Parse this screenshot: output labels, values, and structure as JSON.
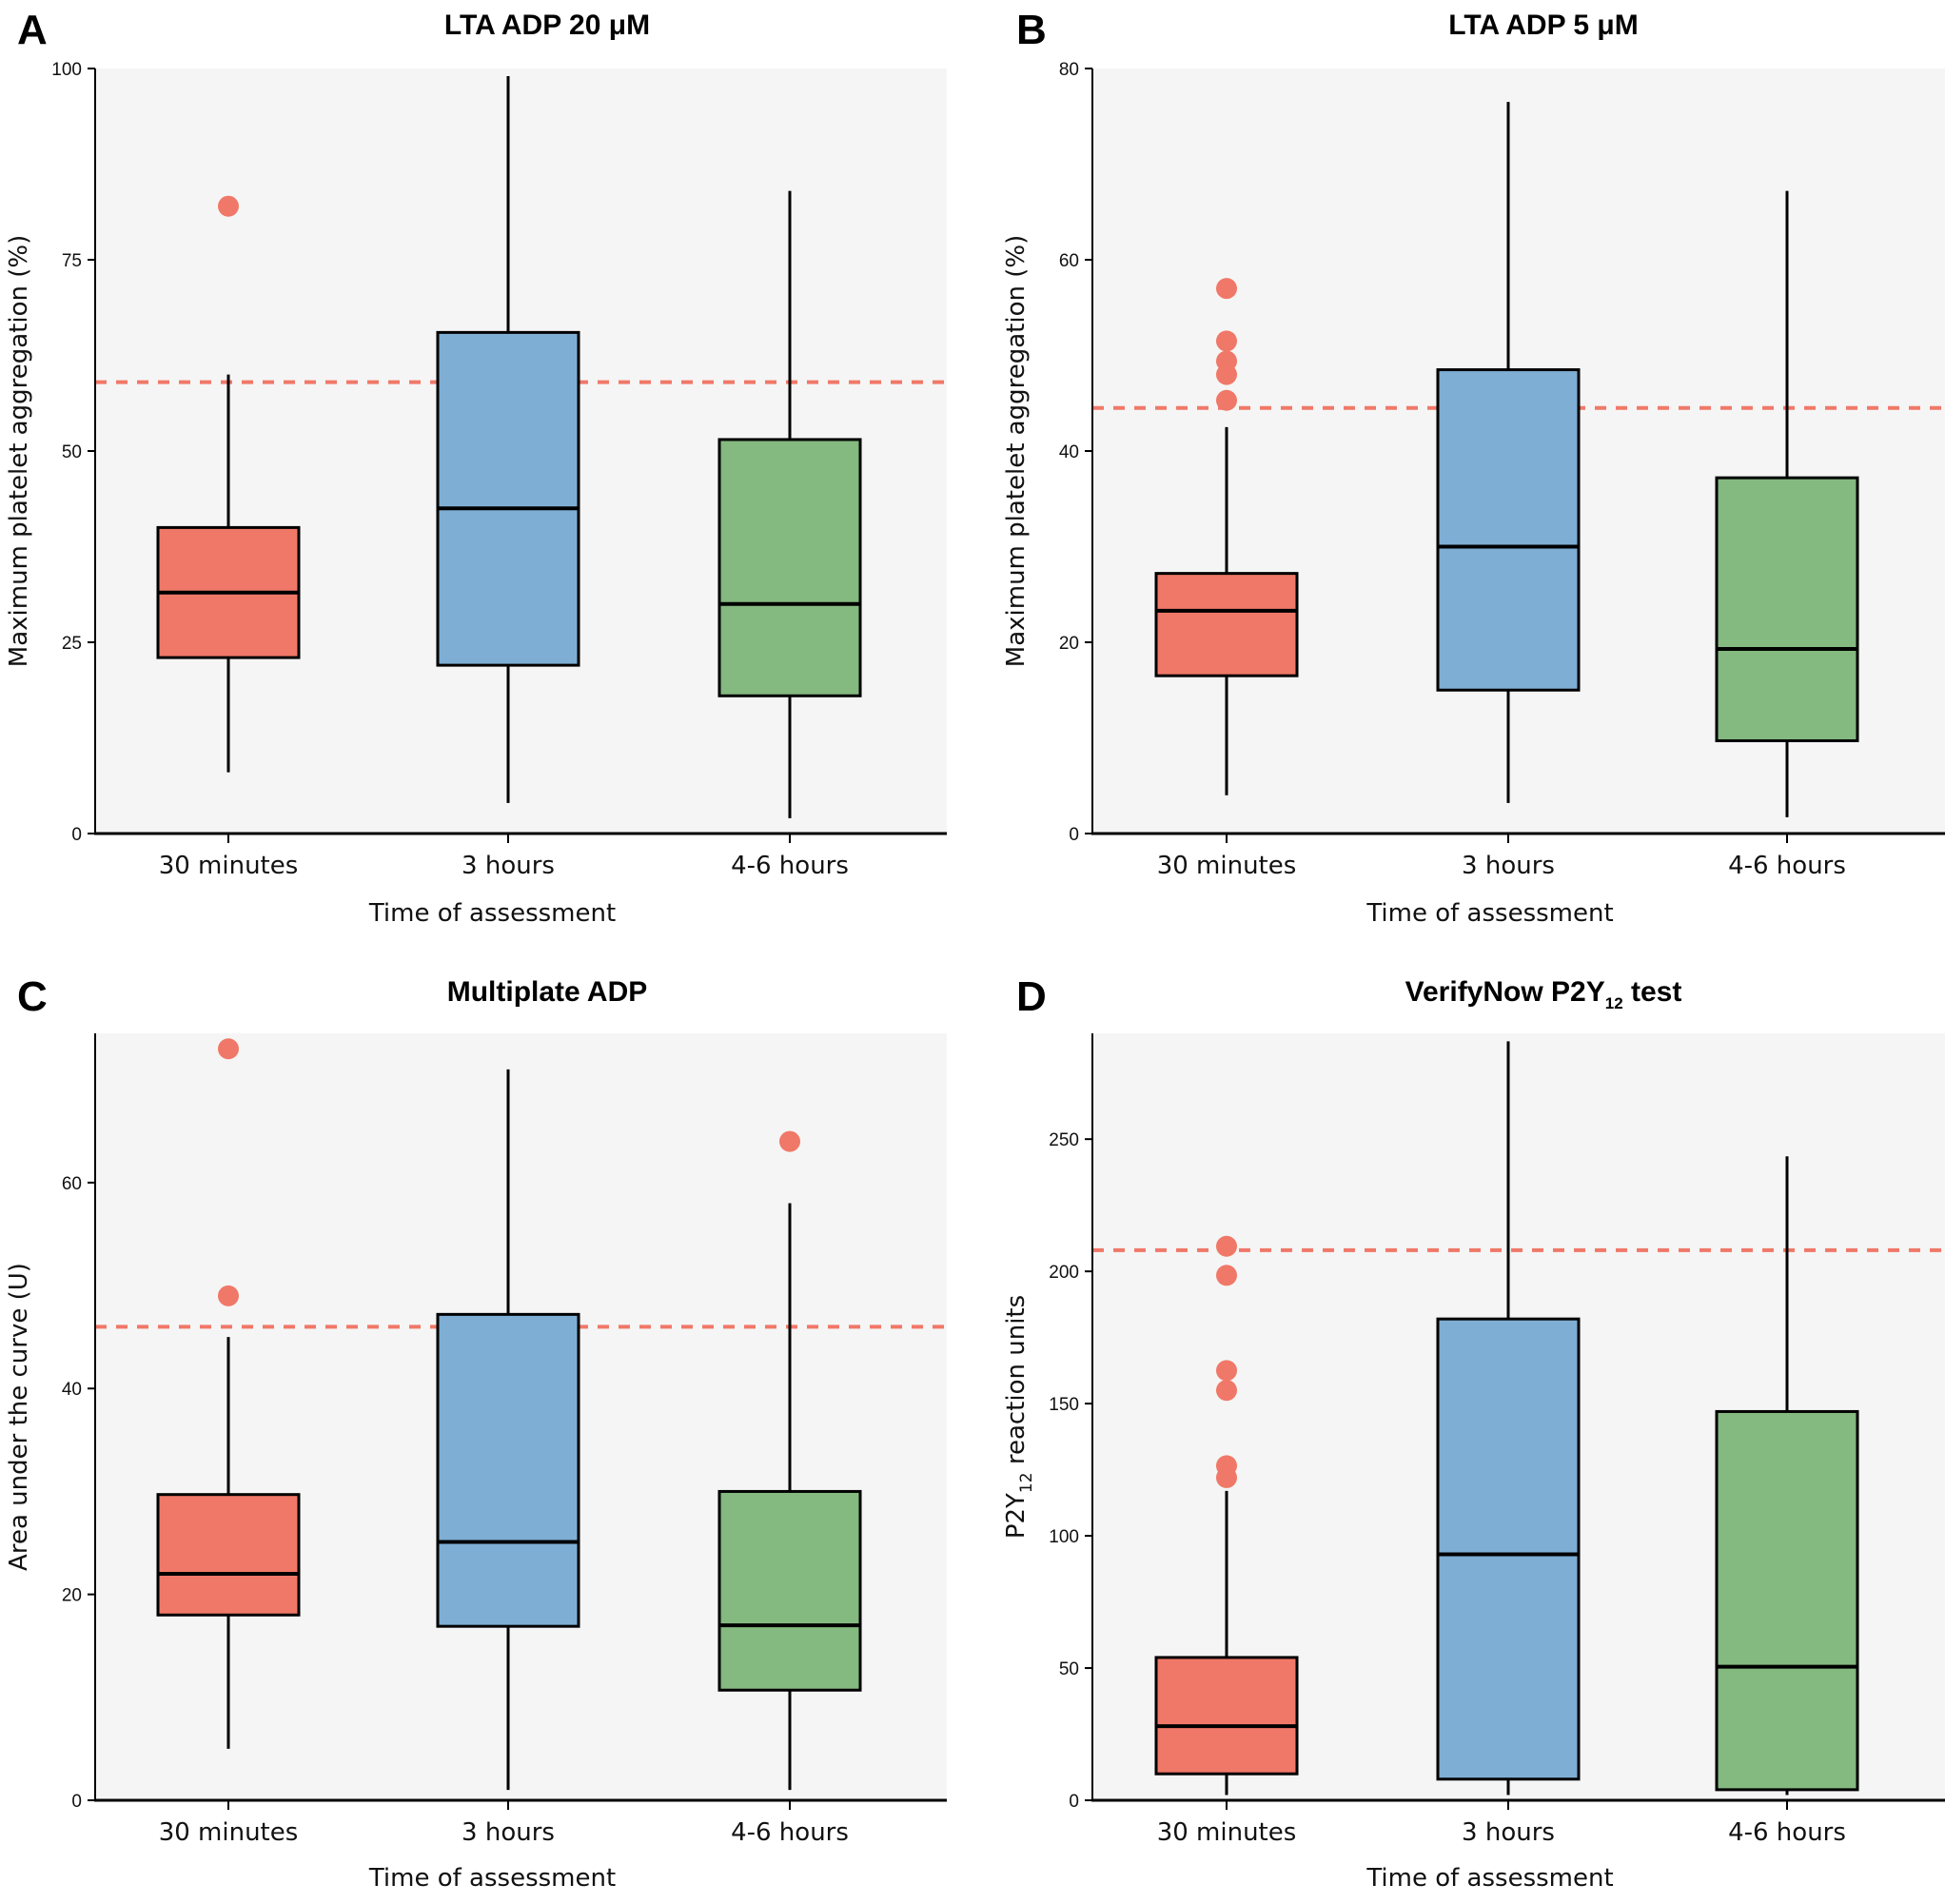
{
  "chart_data": [
    {
      "type": "box",
      "panel_letter": "A",
      "title": "LTA ADP 20 μM",
      "title_subscript": "",
      "title_suffix": "",
      "xlabel": "Time of assessment",
      "ylabel": "Maximum platelet aggregation (%)",
      "ylabel_subscript": "",
      "ylabel_suffix": "",
      "ylim": [
        0,
        100
      ],
      "yticks": [
        0,
        25,
        50,
        75,
        100
      ],
      "categories": [
        "30 minutes",
        "3 hours",
        "4-6 hours"
      ],
      "threshold": 59,
      "boxes": [
        {
          "whisker_low": 8,
          "q1": 23,
          "median": 31.5,
          "q3": 40,
          "whisker_high": 60,
          "outliers": [
            82
          ]
        },
        {
          "whisker_low": 4,
          "q1": 22,
          "median": 42.5,
          "q3": 65.5,
          "whisker_high": 99,
          "outliers": []
        },
        {
          "whisker_low": 2,
          "q1": 18,
          "median": 30,
          "q3": 51.5,
          "whisker_high": 84,
          "outliers": []
        }
      ]
    },
    {
      "type": "box",
      "panel_letter": "B",
      "title": "LTA ADP 5 μM",
      "title_subscript": "",
      "title_suffix": "",
      "xlabel": "Time of assessment",
      "ylabel": "Maximum platelet aggregation (%)",
      "ylabel_subscript": "",
      "ylabel_suffix": "",
      "ylim": [
        0,
        80
      ],
      "yticks": [
        0,
        20,
        40,
        60,
        80
      ],
      "categories": [
        "30 minutes",
        "3 hours",
        "4-6 hours"
      ],
      "threshold": 44.5,
      "boxes": [
        {
          "whisker_low": 4,
          "q1": 16.5,
          "median": 23.3,
          "q3": 27.2,
          "whisker_high": 42.5,
          "outliers": [
            45.3,
            48,
            49.4,
            51.5,
            57
          ]
        },
        {
          "whisker_low": 3.2,
          "q1": 15,
          "median": 30,
          "q3": 48.5,
          "whisker_high": 76.5,
          "outliers": []
        },
        {
          "whisker_low": 1.7,
          "q1": 9.7,
          "median": 19.3,
          "q3": 37.2,
          "whisker_high": 67.2,
          "outliers": []
        }
      ]
    },
    {
      "type": "box",
      "panel_letter": "C",
      "title": "Multiplate ADP",
      "title_subscript": "",
      "title_suffix": "",
      "xlabel": "Time of assessment",
      "ylabel": "Area under the curve (U)",
      "ylabel_subscript": "",
      "ylabel_suffix": "",
      "ylim": [
        0,
        74.5
      ],
      "yticks": [
        0,
        20,
        40,
        60
      ],
      "categories": [
        "30 minutes",
        "3 hours",
        "4-6 hours"
      ],
      "threshold": 46,
      "boxes": [
        {
          "whisker_low": 5,
          "q1": 18,
          "median": 22,
          "q3": 29.7,
          "whisker_high": 45,
          "outliers": [
            49,
            73
          ]
        },
        {
          "whisker_low": 1,
          "q1": 16.9,
          "median": 25.1,
          "q3": 47.2,
          "whisker_high": 71,
          "outliers": []
        },
        {
          "whisker_low": 1,
          "q1": 10.7,
          "median": 17,
          "q3": 30,
          "whisker_high": 58,
          "outliers": [
            64
          ]
        }
      ]
    },
    {
      "type": "box",
      "panel_letter": "D",
      "title": "VerifyNow P2Y",
      "title_subscript": "12",
      "title_suffix": " test",
      "xlabel": "Time of assessment",
      "ylabel": "P2Y",
      "ylabel_subscript": "12",
      "ylabel_suffix": " reaction units",
      "ylim": [
        0,
        290
      ],
      "yticks": [
        0,
        50,
        100,
        150,
        200,
        250
      ],
      "categories": [
        "30 minutes",
        "3 hours",
        "4-6 hours"
      ],
      "threshold": 208,
      "boxes": [
        {
          "whisker_low": 2,
          "q1": 10,
          "median": 28,
          "q3": 54,
          "whisker_high": 117,
          "outliers": [
            122,
            126.5,
            155,
            162.5,
            198.5,
            209.5
          ]
        },
        {
          "whisker_low": 2,
          "q1": 8,
          "median": 93,
          "q3": 182,
          "whisker_high": 287,
          "outliers": []
        },
        {
          "whisker_low": 2,
          "q1": 4,
          "median": 50.5,
          "q3": 147,
          "whisker_high": 243.5,
          "outliers": []
        }
      ]
    }
  ],
  "colors": {
    "box_fills": [
      "#f07868",
      "#7eaed4",
      "#84b980"
    ],
    "outlier": "#f07868",
    "threshold_line": "#f07868",
    "plot_background": "#f5f5f5",
    "ink": "#000000"
  }
}
